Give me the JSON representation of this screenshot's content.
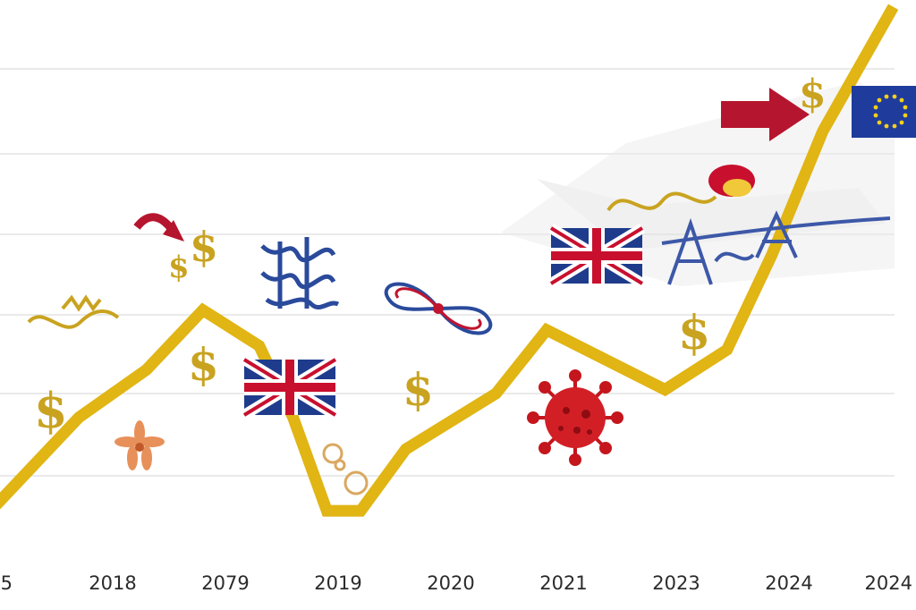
{
  "chart_data": {
    "type": "line",
    "title": "",
    "xlabel": "",
    "ylabel": "",
    "x_tick_labels": [
      "5",
      "2018",
      "2079",
      "2019",
      "2020",
      "2021",
      "2023",
      "2024",
      "2024"
    ],
    "y_tick_labels": [],
    "series": [
      {
        "color": "#e0b514",
        "points": [
          {
            "x": 0.0,
            "y": 0.9
          },
          {
            "x": 0.7,
            "y": 3.0
          },
          {
            "x": 1.3,
            "y": 4.2
          },
          {
            "x": 1.8,
            "y": 5.7
          },
          {
            "x": 2.3,
            "y": 4.8
          },
          {
            "x": 2.6,
            "y": 3.0
          },
          {
            "x": 2.9,
            "y": 0.65
          },
          {
            "x": 3.2,
            "y": 0.65
          },
          {
            "x": 3.6,
            "y": 2.2
          },
          {
            "x": 4.4,
            "y": 3.6
          },
          {
            "x": 4.85,
            "y": 5.2
          },
          {
            "x": 5.9,
            "y": 3.7
          },
          {
            "x": 6.45,
            "y": 4.7
          },
          {
            "x": 6.85,
            "y": 7.1
          },
          {
            "x": 7.3,
            "y": 10.2
          },
          {
            "x": 7.9,
            "y": 13.2
          }
        ]
      }
    ],
    "xlim": [
      0,
      8
    ],
    "ylim": [
      0,
      13.5
    ],
    "gridlines": true
  },
  "decorations": {
    "colors": {
      "line": "#e0b514",
      "gold": "#c9a320",
      "red": "#c0142f",
      "blue": "#2a4a9b",
      "grid": "#e3e3e3"
    },
    "icons": [
      "dollar-sign-icon",
      "union-jack-flag-icon",
      "eu-flag-icon",
      "virus-icon",
      "arrow-icon",
      "ribbon-icon",
      "flower-icon",
      "scribble-icon"
    ]
  }
}
